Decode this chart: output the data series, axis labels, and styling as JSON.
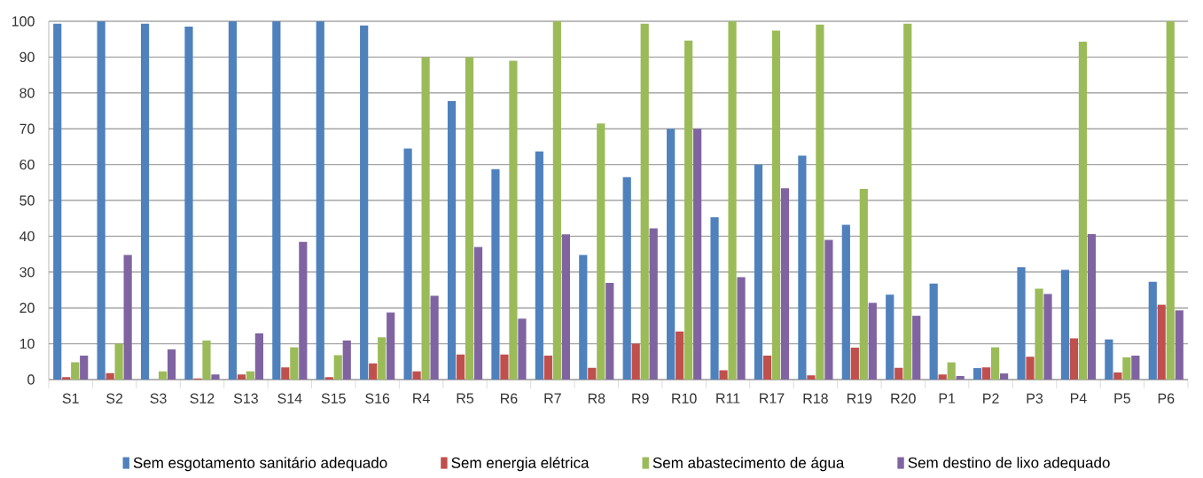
{
  "chart_data": {
    "type": "bar",
    "categories": [
      "S1",
      "S2",
      "S3",
      "S12",
      "S13",
      "S14",
      "S15",
      "S16",
      "R4",
      "R5",
      "R6",
      "R7",
      "R8",
      "R9",
      "R10",
      "R11",
      "R17",
      "R18",
      "R19",
      "R20",
      "P1",
      "P2",
      "P3",
      "P4",
      "P5",
      "P6"
    ],
    "series": [
      {
        "name": "Sem esgotamento sanitário adequado",
        "color": "#4f81bd",
        "values": [
          99.3,
          100,
          99.3,
          98.5,
          100,
          100,
          100,
          98.8,
          64.5,
          77.7,
          58.7,
          63.7,
          34.8,
          56.5,
          70,
          45.3,
          60,
          62.5,
          43.2,
          23.7,
          26.8,
          3.2,
          31.4,
          30.6,
          11.2,
          27.3
        ]
      },
      {
        "name": "Sem energia elétrica",
        "color": "#c0504d",
        "values": [
          0.7,
          1.8,
          0,
          0.3,
          1.4,
          3.4,
          0.7,
          4.5,
          2.3,
          7,
          7,
          6.7,
          3.3,
          10,
          13.4,
          2.6,
          6.7,
          1.2,
          8.9,
          3.3,
          1.4,
          3.4,
          6.4,
          11.5,
          2,
          20.9
        ]
      },
      {
        "name": "Sem abastecimento de água",
        "color": "#9bbb59",
        "values": [
          4.8,
          10,
          2.3,
          10.9,
          2.3,
          9,
          6.8,
          11.8,
          90,
          90,
          89,
          100,
          71.5,
          99.3,
          94.6,
          100,
          97.4,
          99.1,
          53.2,
          99.3,
          4.8,
          9,
          25.4,
          94.3,
          6.2,
          100
        ]
      },
      {
        "name": "Sem destino de lixo adequado",
        "color": "#8064a2",
        "values": [
          6.7,
          34.8,
          8.4,
          1.4,
          12.9,
          38.4,
          10.9,
          18.7,
          23.4,
          37,
          17,
          40.5,
          27,
          42.2,
          70,
          28.6,
          53.4,
          39,
          21.4,
          17.8,
          1,
          1.7,
          23.9,
          40.6,
          6.7,
          19.3
        ]
      }
    ],
    "ylim": [
      0,
      100
    ],
    "yticks": [
      0,
      10,
      20,
      30,
      40,
      50,
      60,
      70,
      80,
      90,
      100
    ],
    "grid": "y",
    "legend": "bottom"
  }
}
